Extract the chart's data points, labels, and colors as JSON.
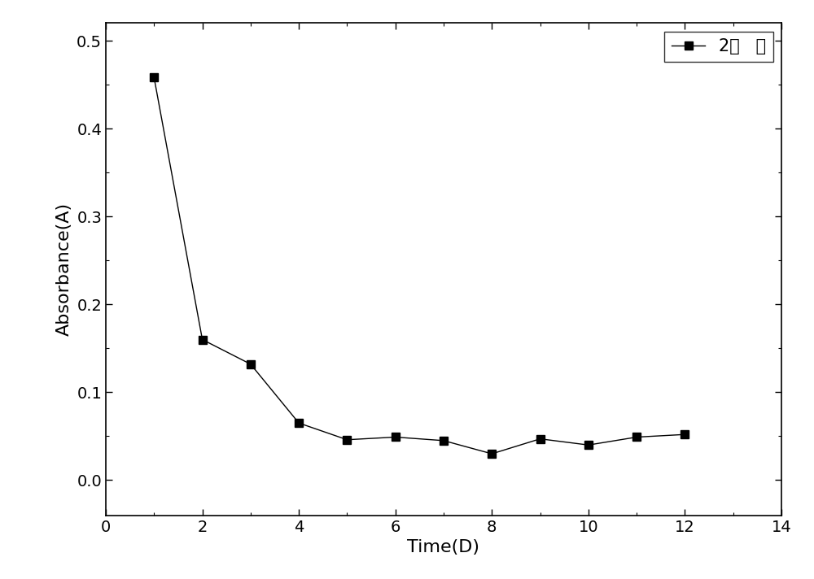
{
  "x": [
    1,
    2,
    3,
    4,
    5,
    6,
    7,
    8,
    9,
    10,
    11,
    12
  ],
  "y": [
    0.458,
    0.16,
    0.132,
    0.065,
    0.046,
    0.049,
    0.045,
    0.03,
    0.047,
    0.04,
    0.049,
    0.052
  ],
  "xlabel": "Time(D)",
  "ylabel": "Absorbance(A)",
  "legend_label": "2号   点",
  "xlim": [
    0,
    14
  ],
  "ylim": [
    -0.04,
    0.52
  ],
  "xticks": [
    0,
    2,
    4,
    6,
    8,
    10,
    12,
    14
  ],
  "yticks": [
    0.0,
    0.1,
    0.2,
    0.3,
    0.4,
    0.5
  ],
  "line_color": "#000000",
  "marker": "s",
  "marker_size": 7,
  "marker_facecolor": "#000000",
  "line_width": 1.0,
  "background_color": "#ffffff",
  "label_fontsize": 16,
  "tick_fontsize": 14,
  "legend_fontsize": 15
}
